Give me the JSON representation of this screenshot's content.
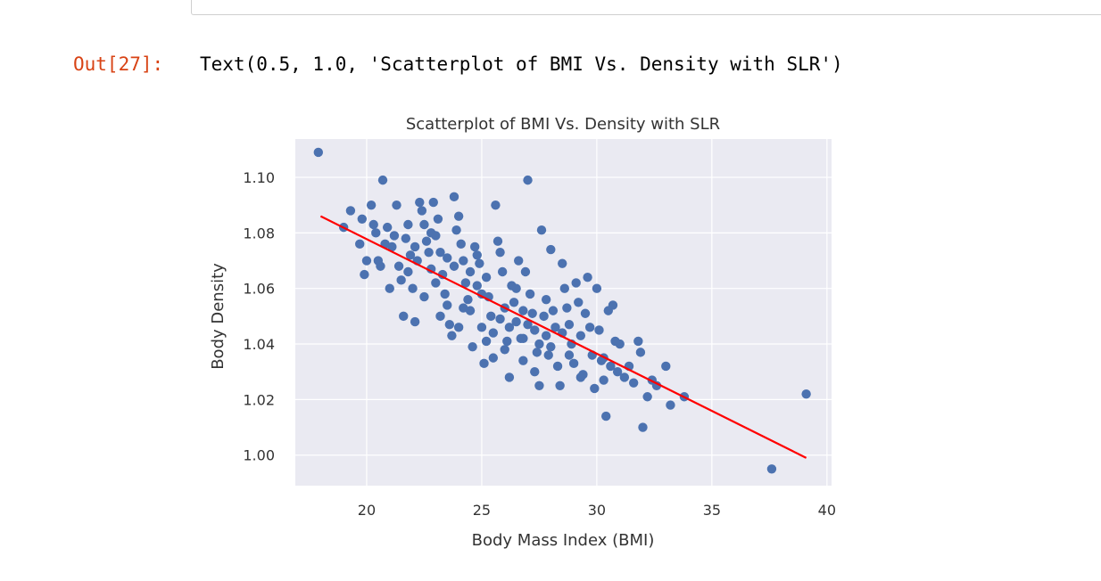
{
  "notebook": {
    "out_prompt": "Out[27]:",
    "output_text": "Text(0.5, 1.0, 'Scatterplot of BMI Vs. Density with SLR')"
  },
  "colors": {
    "axes_bg": "#eaeaf2",
    "grid": "#ffffff",
    "points": "#4c72b0",
    "regression_line": "#ff0000",
    "prompt": "#d84315"
  },
  "chart_data": {
    "type": "scatter",
    "title": "Scatterplot of BMI Vs. Density with SLR",
    "xlabel": "Body Mass Index (BMI)",
    "ylabel": "Body Density",
    "xlim": [
      16.9,
      40.2
    ],
    "ylim": [
      0.989,
      1.1138
    ],
    "xticks": [
      20,
      25,
      30,
      35,
      40
    ],
    "yticks": [
      1.0,
      1.02,
      1.04,
      1.06,
      1.08,
      1.1
    ],
    "xtick_labels": [
      "20",
      "25",
      "30",
      "35",
      "40"
    ],
    "ytick_labels": [
      "1.00",
      "1.02",
      "1.04",
      "1.06",
      "1.08",
      "1.10"
    ],
    "grid": true,
    "regression_line": {
      "x": [
        18.0,
        39.1
      ],
      "y": [
        1.086,
        0.999
      ]
    },
    "points": [
      [
        17.9,
        1.109
      ],
      [
        19.0,
        1.082
      ],
      [
        19.3,
        1.088
      ],
      [
        19.7,
        1.076
      ],
      [
        19.8,
        1.085
      ],
      [
        19.9,
        1.065
      ],
      [
        20.0,
        1.07
      ],
      [
        20.2,
        1.09
      ],
      [
        20.3,
        1.083
      ],
      [
        20.4,
        1.08
      ],
      [
        20.5,
        1.07
      ],
      [
        20.6,
        1.068
      ],
      [
        20.7,
        1.099
      ],
      [
        20.8,
        1.076
      ],
      [
        20.9,
        1.082
      ],
      [
        21.0,
        1.06
      ],
      [
        21.1,
        1.075
      ],
      [
        21.2,
        1.079
      ],
      [
        21.3,
        1.09
      ],
      [
        21.4,
        1.068
      ],
      [
        21.5,
        1.063
      ],
      [
        21.6,
        1.05
      ],
      [
        21.7,
        1.078
      ],
      [
        21.8,
        1.083
      ],
      [
        21.9,
        1.072
      ],
      [
        22.0,
        1.06
      ],
      [
        22.1,
        1.048
      ],
      [
        22.2,
        1.07
      ],
      [
        22.3,
        1.091
      ],
      [
        22.4,
        1.088
      ],
      [
        22.5,
        1.083
      ],
      [
        22.6,
        1.077
      ],
      [
        22.7,
        1.073
      ],
      [
        22.8,
        1.067
      ],
      [
        22.9,
        1.091
      ],
      [
        23.0,
        1.079
      ],
      [
        23.1,
        1.085
      ],
      [
        23.2,
        1.073
      ],
      [
        23.3,
        1.065
      ],
      [
        23.4,
        1.058
      ],
      [
        23.5,
        1.054
      ],
      [
        23.6,
        1.047
      ],
      [
        23.7,
        1.043
      ],
      [
        23.8,
        1.093
      ],
      [
        23.9,
        1.081
      ],
      [
        24.0,
        1.086
      ],
      [
        24.1,
        1.076
      ],
      [
        24.2,
        1.07
      ],
      [
        24.3,
        1.062
      ],
      [
        24.4,
        1.056
      ],
      [
        24.5,
        1.052
      ],
      [
        24.6,
        1.039
      ],
      [
        24.7,
        1.075
      ],
      [
        24.8,
        1.061
      ],
      [
        24.9,
        1.069
      ],
      [
        25.0,
        1.046
      ],
      [
        25.1,
        1.033
      ],
      [
        25.2,
        1.064
      ],
      [
        25.3,
        1.057
      ],
      [
        25.4,
        1.05
      ],
      [
        25.5,
        1.044
      ],
      [
        25.6,
        1.09
      ],
      [
        25.7,
        1.077
      ],
      [
        25.8,
        1.073
      ],
      [
        25.9,
        1.066
      ],
      [
        26.0,
        1.053
      ],
      [
        26.1,
        1.041
      ],
      [
        26.2,
        1.028
      ],
      [
        26.3,
        1.061
      ],
      [
        26.4,
        1.055
      ],
      [
        26.5,
        1.048
      ],
      [
        26.6,
        1.07
      ],
      [
        26.7,
        1.042
      ],
      [
        26.8,
        1.034
      ],
      [
        26.9,
        1.066
      ],
      [
        27.0,
        1.099
      ],
      [
        27.1,
        1.058
      ],
      [
        27.2,
        1.051
      ],
      [
        27.3,
        1.045
      ],
      [
        27.4,
        1.037
      ],
      [
        27.5,
        1.025
      ],
      [
        27.6,
        1.081
      ],
      [
        27.7,
        1.05
      ],
      [
        27.8,
        1.043
      ],
      [
        27.9,
        1.036
      ],
      [
        28.0,
        1.074
      ],
      [
        28.1,
        1.052
      ],
      [
        28.2,
        1.046
      ],
      [
        28.3,
        1.032
      ],
      [
        28.4,
        1.025
      ],
      [
        28.5,
        1.069
      ],
      [
        28.6,
        1.06
      ],
      [
        28.7,
        1.053
      ],
      [
        28.8,
        1.047
      ],
      [
        28.9,
        1.04
      ],
      [
        29.0,
        1.033
      ],
      [
        29.1,
        1.062
      ],
      [
        29.2,
        1.055
      ],
      [
        29.3,
        1.043
      ],
      [
        29.4,
        1.029
      ],
      [
        29.5,
        1.051
      ],
      [
        29.6,
        1.064
      ],
      [
        29.7,
        1.046
      ],
      [
        29.8,
        1.036
      ],
      [
        29.9,
        1.024
      ],
      [
        30.0,
        1.06
      ],
      [
        30.1,
        1.045
      ],
      [
        30.2,
        1.034
      ],
      [
        30.3,
        1.027
      ],
      [
        30.4,
        1.014
      ],
      [
        30.5,
        1.052
      ],
      [
        30.6,
        1.032
      ],
      [
        30.7,
        1.054
      ],
      [
        30.8,
        1.041
      ],
      [
        30.9,
        1.03
      ],
      [
        31.0,
        1.04
      ],
      [
        31.2,
        1.028
      ],
      [
        31.4,
        1.032
      ],
      [
        31.6,
        1.026
      ],
      [
        31.8,
        1.041
      ],
      [
        31.9,
        1.037
      ],
      [
        32.0,
        1.01
      ],
      [
        32.2,
        1.021
      ],
      [
        32.4,
        1.027
      ],
      [
        32.6,
        1.025
      ],
      [
        33.0,
        1.032
      ],
      [
        33.2,
        1.018
      ],
      [
        33.8,
        1.021
      ],
      [
        37.6,
        0.995
      ],
      [
        39.1,
        1.022
      ],
      [
        22.1,
        1.075
      ],
      [
        23.0,
        1.062
      ],
      [
        24.0,
        1.046
      ],
      [
        25.0,
        1.058
      ],
      [
        26.0,
        1.038
      ],
      [
        27.0,
        1.047
      ],
      [
        28.0,
        1.039
      ],
      [
        24.5,
        1.066
      ],
      [
        23.5,
        1.071
      ],
      [
        22.5,
        1.057
      ],
      [
        25.5,
        1.035
      ],
      [
        26.5,
        1.06
      ],
      [
        27.5,
        1.04
      ],
      [
        28.5,
        1.044
      ],
      [
        26.2,
        1.046
      ],
      [
        25.2,
        1.041
      ],
      [
        24.2,
        1.053
      ],
      [
        23.2,
        1.05
      ],
      [
        26.8,
        1.052
      ],
      [
        27.8,
        1.056
      ],
      [
        21.8,
        1.066
      ],
      [
        22.8,
        1.08
      ],
      [
        23.8,
        1.068
      ],
      [
        24.8,
        1.072
      ],
      [
        25.8,
        1.049
      ],
      [
        26.8,
        1.042
      ],
      [
        27.3,
        1.03
      ],
      [
        28.8,
        1.036
      ],
      [
        29.3,
        1.028
      ],
      [
        30.3,
        1.035
      ]
    ]
  }
}
